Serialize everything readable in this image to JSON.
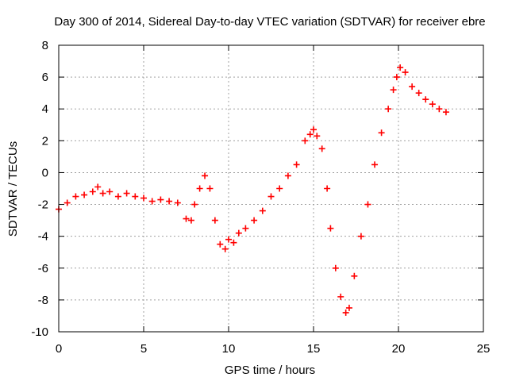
{
  "chart_data": {
    "type": "scatter",
    "title": "Day 300 of 2014, Sidereal Day-to-day VTEC variation (SDTVAR) for receiver ebre",
    "xlabel": "GPS time / hours",
    "ylabel": "SDTVAR / TECUs",
    "xlim": [
      0,
      25
    ],
    "ylim": [
      -10,
      8
    ],
    "xticks": [
      0,
      5,
      10,
      15,
      20,
      25
    ],
    "yticks": [
      -10,
      -8,
      -6,
      -4,
      -2,
      0,
      2,
      4,
      6,
      8
    ],
    "grid": true,
    "legend": "none",
    "marker": "plus",
    "colors": {
      "series": "#ff0000",
      "grid": "#a0a0a0",
      "axis": "#000000"
    },
    "series": [
      {
        "x": [
          0.0,
          0.5,
          1.0,
          1.5,
          2.0,
          2.3,
          2.6,
          3.0,
          3.5,
          4.0,
          4.5,
          5.0,
          5.5,
          6.0,
          6.5,
          7.0,
          7.5,
          7.8,
          8.0,
          8.3,
          8.6,
          8.9,
          9.2,
          9.5,
          9.8,
          10.0,
          10.3,
          10.6,
          11.0,
          11.5,
          12.0,
          12.5,
          13.0,
          13.5,
          14.0,
          14.5,
          14.8,
          15.0,
          15.2,
          15.5,
          15.8,
          16.0,
          16.3,
          16.6,
          16.9,
          17.1,
          17.4,
          17.8,
          18.2,
          18.6,
          19.0,
          19.4,
          19.7,
          19.9,
          20.1,
          20.4,
          20.8,
          21.2,
          21.6,
          22.0,
          22.4,
          22.8
        ],
        "y": [
          -2.3,
          -1.9,
          -1.5,
          -1.4,
          -1.2,
          -0.9,
          -1.3,
          -1.2,
          -1.5,
          -1.3,
          -1.5,
          -1.6,
          -1.8,
          -1.7,
          -1.8,
          -1.9,
          -2.9,
          -3.0,
          -2.0,
          -1.0,
          -0.2,
          -1.0,
          -3.0,
          -4.5,
          -4.8,
          -4.2,
          -4.4,
          -3.8,
          -3.5,
          -3.0,
          -2.4,
          -1.5,
          -1.0,
          -0.2,
          0.5,
          2.0,
          2.4,
          2.7,
          2.3,
          1.5,
          -1.0,
          -3.5,
          -6.0,
          -7.8,
          -8.8,
          -8.5,
          -6.5,
          -4.0,
          -2.0,
          0.5,
          2.5,
          4.0,
          5.2,
          6.0,
          6.6,
          6.3,
          5.4,
          5.0,
          4.6,
          4.3,
          4.0,
          3.8
        ]
      }
    ]
  }
}
